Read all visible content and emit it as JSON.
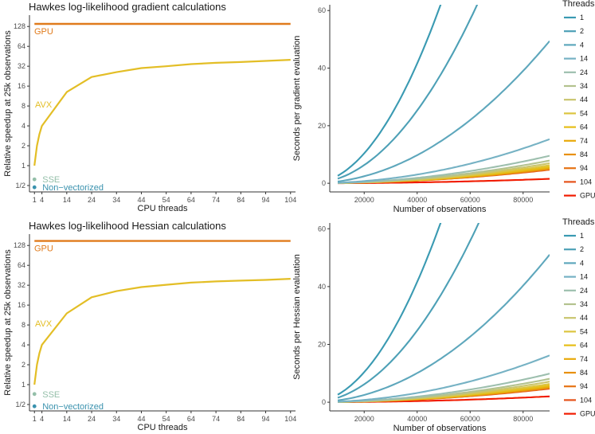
{
  "chart_data": [
    {
      "type": "line",
      "panel": "top-left",
      "title": "Hawkes log-likelihood gradient calculations",
      "xlabel": "CPU threads",
      "ylabel": "Relative speedup at 25k observations",
      "y_scale": "log2",
      "ylim": [
        0.4,
        190
      ],
      "xlim": [
        -1,
        106
      ],
      "x_ticks": [
        1,
        4,
        14,
        24,
        34,
        44,
        54,
        64,
        74,
        84,
        94,
        104
      ],
      "y_ticks": [
        0.5,
        1,
        2,
        4,
        8,
        16,
        32,
        64,
        128
      ],
      "y_tick_labels": [
        "1/2",
        "1",
        "2",
        "4",
        "8",
        "16",
        "32",
        "64",
        "128"
      ],
      "series": [
        {
          "name": "GPU",
          "color": "#E07B1C",
          "kind": "hline",
          "value": 140
        },
        {
          "name": "AVX",
          "color": "#E3BE26",
          "kind": "line",
          "x": [
            1,
            2,
            3,
            4,
            14,
            24,
            34,
            44,
            54,
            64,
            74,
            84,
            94,
            104
          ],
          "y": [
            1,
            2,
            3,
            4,
            13,
            22,
            26,
            30,
            32,
            34.5,
            36,
            37,
            38.5,
            40
          ]
        },
        {
          "name": "SSE",
          "color": "#94BFA9",
          "kind": "point",
          "x": [
            1
          ],
          "y": [
            0.62
          ]
        },
        {
          "name": "Non−vectorized",
          "color": "#3A92AE",
          "kind": "point",
          "x": [
            1
          ],
          "y": [
            0.47
          ]
        }
      ],
      "annotations": [
        "GPU",
        "AVX",
        "SSE",
        "Non−vectorized"
      ]
    },
    {
      "type": "line",
      "panel": "top-right",
      "xlabel": "Number of observations",
      "ylabel": "Seconds per gradient evaluation",
      "xlim": [
        7000,
        90000
      ],
      "ylim": [
        -3,
        62
      ],
      "x_ticks": [
        20000,
        40000,
        60000,
        80000
      ],
      "y_ticks": [
        0,
        20,
        40,
        60
      ],
      "legend_title": "Threads",
      "legend_position": "right",
      "threads": [
        "1",
        "2",
        "4",
        "14",
        "24",
        "34",
        "44",
        "54",
        "64",
        "74",
        "84",
        "94",
        "104",
        "GPU"
      ],
      "colors": [
        "#3A9AB2",
        "#4DA0B6",
        "#5EA7BC",
        "#76B2C4",
        "#9DBFAE",
        "#B3C28E",
        "#C9C56E",
        "#DCC53F",
        "#E6BE17",
        "#E9A90A",
        "#E8900C",
        "#E67314",
        "#E5521A",
        "#F11B00"
      ],
      "coeffs": [
        0.026,
        0.0158,
        0.0061,
        0.00189,
        0.00118,
        0.000975,
        0.00086,
        0.00077,
        0.0007,
        0.000655,
        0.000625,
        0.0006,
        0.00058,
        0.00019
      ],
      "x_max": 90000
    },
    {
      "type": "line",
      "panel": "bottom-left",
      "title": "Hawkes log-likelihood Hessian calculations",
      "xlabel": "CPU threads",
      "ylabel": "Relative speedup at 25k observations",
      "y_scale": "log2",
      "ylim": [
        0.4,
        190
      ],
      "xlim": [
        -1,
        106
      ],
      "x_ticks": [
        1,
        4,
        14,
        24,
        34,
        44,
        54,
        64,
        74,
        84,
        94,
        104
      ],
      "y_ticks": [
        0.5,
        1,
        2,
        4,
        8,
        16,
        32,
        64,
        128
      ],
      "y_tick_labels": [
        "1/2",
        "1",
        "2",
        "4",
        "8",
        "16",
        "32",
        "64",
        "128"
      ],
      "series": [
        {
          "name": "GPU",
          "color": "#E07B1C",
          "kind": "hline",
          "value": 150
        },
        {
          "name": "AVX",
          "color": "#E3BE26",
          "kind": "line",
          "x": [
            1,
            2,
            3,
            4,
            14,
            24,
            34,
            44,
            54,
            64,
            74,
            84,
            94,
            104
          ],
          "y": [
            1,
            2,
            3,
            4,
            12,
            21,
            26,
            30,
            32.5,
            35,
            36.5,
            37.5,
            38.5,
            40
          ]
        },
        {
          "name": "SSE",
          "color": "#94BFA9",
          "kind": "point",
          "x": [
            1
          ],
          "y": [
            0.72
          ]
        },
        {
          "name": "Non−vectorized",
          "color": "#3A92AE",
          "kind": "point",
          "x": [
            1
          ],
          "y": [
            0.47
          ]
        }
      ],
      "annotations": [
        "GPU",
        "AVX",
        "SSE",
        "Non−vectorized"
      ]
    },
    {
      "type": "line",
      "panel": "bottom-right",
      "xlabel": "Number of observations",
      "ylabel": "Seconds per Hessian evaluation",
      "xlim": [
        7000,
        90000
      ],
      "ylim": [
        -3,
        62
      ],
      "x_ticks": [
        20000,
        40000,
        60000,
        80000
      ],
      "y_ticks": [
        0,
        20,
        40,
        60
      ],
      "legend_title": "Threads",
      "legend_position": "right",
      "threads": [
        "1",
        "2",
        "4",
        "14",
        "24",
        "34",
        "44",
        "54",
        "64",
        "74",
        "84",
        "94",
        "104",
        "GPU"
      ],
      "colors": [
        "#3A9AB2",
        "#4DA0B6",
        "#5EA7BC",
        "#76B2C4",
        "#9DBFAE",
        "#B3C28E",
        "#C9C56E",
        "#DCC53F",
        "#E6BE17",
        "#E9A90A",
        "#E8900C",
        "#E67314",
        "#E5521A",
        "#F11B00"
      ],
      "coeffs": [
        0.026,
        0.0155,
        0.0063,
        0.002,
        0.00122,
        0.001,
        0.00088,
        0.00078,
        0.00071,
        0.00066,
        0.00063,
        0.0006,
        0.00058,
        0.00025
      ],
      "x_max": 90000
    }
  ]
}
